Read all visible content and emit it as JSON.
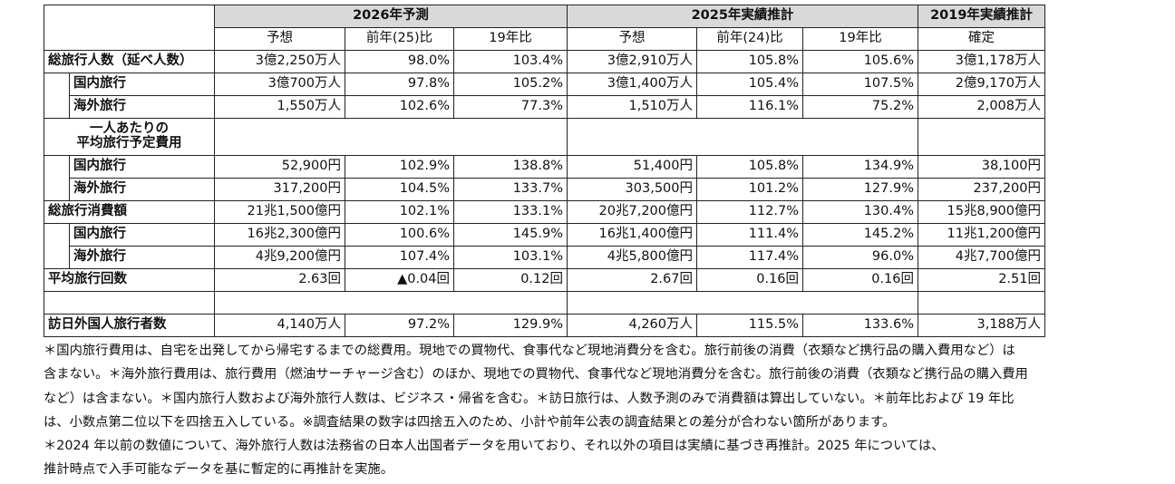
{
  "headers": {
    "g2026": "2026年予測",
    "g2025": "2025年実績推計",
    "g2019": "2019年実績推計",
    "sub": [
      "予想",
      "前年(25)比",
      "19年比",
      "予想",
      "前年(24)比",
      "19年比",
      "確定"
    ]
  },
  "rows": [
    {
      "label": "総旅行人数（延べ人数）",
      "values": [
        "3億2,250万人",
        "98.0%",
        "103.4%",
        "3億2,910万人",
        "105.8%",
        "105.6%",
        "3億1,178万人"
      ]
    },
    {
      "label": "国内旅行",
      "values": [
        "3億700万人",
        "97.8%",
        "105.2%",
        "3億1,400万人",
        "105.4%",
        "107.5%",
        "2億9,170万人"
      ]
    },
    {
      "label": "海外旅行",
      "values": [
        "1,550万人",
        "102.6%",
        "77.3%",
        "1,510万人",
        "116.1%",
        "75.2%",
        "2,008万人"
      ]
    },
    {
      "label1": "一人あたりの",
      "label2": "平均旅行予定費用"
    },
    {
      "label": "国内旅行",
      "values": [
        "52,900円",
        "102.9%",
        "138.8%",
        "51,400円",
        "105.8%",
        "134.9%",
        "38,100円"
      ]
    },
    {
      "label": "海外旅行",
      "values": [
        "317,200円",
        "104.5%",
        "133.7%",
        "303,500円",
        "101.2%",
        "127.9%",
        "237,200円"
      ]
    },
    {
      "label": "総旅行消費額",
      "values": [
        "21兆1,500億円",
        "102.1%",
        "133.1%",
        "20兆7,200億円",
        "112.7%",
        "130.4%",
        "15兆8,900億円"
      ]
    },
    {
      "label": "国内旅行",
      "values": [
        "16兆2,300億円",
        "100.6%",
        "145.9%",
        "16兆1,400億円",
        "111.4%",
        "145.2%",
        "11兆1,200億円"
      ]
    },
    {
      "label": "海外旅行",
      "values": [
        "4兆9,200億円",
        "107.4%",
        "103.1%",
        "4兆5,800億円",
        "117.4%",
        "96.0%",
        "4兆7,700億円"
      ]
    },
    {
      "label": "平均旅行回数",
      "values": [
        "2.63回",
        "▲0.04回",
        "0.12回",
        "2.67回",
        "0.16回",
        "0.16回",
        "2.51回"
      ]
    },
    {
      "label": "訪日外国人旅行者数",
      "values": [
        "4,140万人",
        "97.2%",
        "129.9%",
        "4,260万人",
        "115.5%",
        "133.6%",
        "3,188万人"
      ]
    }
  ],
  "notes": [
    "＊国内旅行費用は、自宅を出発してから帰宅するまでの総費用。現地での買物代、食事代など現地消費分を含む。旅行前後の消費（衣類など携行品の購入費用など）は",
    "含まない。＊海外旅行費用は、旅行費用（燃油サーチャージ含む）のほか、現地での買物代、食事代など現地消費分を含む。旅行前後の消費（衣類など携行品の購入費用",
    "など）は含まない。＊国内旅行人数および海外旅行人数は、ビジネス・帰省を含む。＊訪日旅行は、人数予測のみで消費額は算出していない。＊前年比および 19 年比",
    "は、小数点第二位以下を四捨五入している。※調査結果の数字は四捨五入のため、小計や前年公表の調査結果との差分が合わない箇所があります。",
    "＊2024 年以前の数値について、海外旅行人数は法務省の日本人出国者データを用いており、それ以外の項目は実績に基づき再推計。2025 年については、",
    "推計時点で入手可能なデータを基に暫定的に再推計を実施。"
  ]
}
